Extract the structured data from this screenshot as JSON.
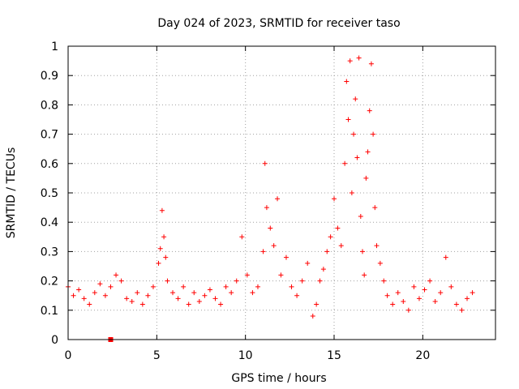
{
  "chart_data": {
    "type": "scatter",
    "title": "Day 024 of 2023, SRMTID for receiver taso",
    "xlabel": "GPS time / hours",
    "ylabel": "SRMTID / TECUs",
    "xlim": [
      0,
      24.1
    ],
    "ylim": [
      0,
      1
    ],
    "xticks": [
      0,
      5,
      10,
      15,
      20
    ],
    "yticks": [
      0,
      0.1,
      0.2,
      0.3,
      0.4,
      0.5,
      0.6,
      0.7,
      0.8,
      0.9,
      1
    ],
    "xtick_labels": [
      "0",
      "5",
      "10",
      "15",
      "20"
    ],
    "ytick_labels": [
      "0",
      "0.1",
      "0.2",
      "0.3",
      "0.4",
      "0.5",
      "0.6",
      "0.7",
      "0.8",
      "0.9",
      "1"
    ],
    "grid": true,
    "legend": "none",
    "series": [
      {
        "name": "SRMTID",
        "marker": "plus",
        "color": "#ff0000",
        "x": [
          0.0,
          0.3,
          0.6,
          0.9,
          1.2,
          1.5,
          1.8,
          2.1,
          2.4,
          2.7,
          3.0,
          3.3,
          3.6,
          3.9,
          4.2,
          4.5,
          4.8,
          5.1,
          5.2,
          5.3,
          5.4,
          5.5,
          5.6,
          5.9,
          6.2,
          6.5,
          6.8,
          7.1,
          7.4,
          7.7,
          8.0,
          8.3,
          8.6,
          8.9,
          9.2,
          9.5,
          9.8,
          10.1,
          10.4,
          10.7,
          11.0,
          11.1,
          11.2,
          11.4,
          11.6,
          11.8,
          12.0,
          12.3,
          12.6,
          12.9,
          13.2,
          13.5,
          13.8,
          14.0,
          14.2,
          14.4,
          14.6,
          14.8,
          15.0,
          15.2,
          15.4,
          15.6,
          15.7,
          15.8,
          15.9,
          16.0,
          16.1,
          16.2,
          16.3,
          16.4,
          16.5,
          16.6,
          16.7,
          16.8,
          16.9,
          17.0,
          17.1,
          17.2,
          17.3,
          17.4,
          17.6,
          17.8,
          18.0,
          18.3,
          18.6,
          18.9,
          19.2,
          19.5,
          19.8,
          20.1,
          20.4,
          20.7,
          21.0,
          21.3,
          21.6,
          21.9,
          22.2,
          22.5,
          22.8
        ],
        "y": [
          0.18,
          0.15,
          0.17,
          0.14,
          0.12,
          0.16,
          0.19,
          0.15,
          0.18,
          0.22,
          0.2,
          0.14,
          0.13,
          0.16,
          0.12,
          0.15,
          0.18,
          0.26,
          0.31,
          0.44,
          0.35,
          0.28,
          0.2,
          0.16,
          0.14,
          0.18,
          0.12,
          0.16,
          0.13,
          0.15,
          0.17,
          0.14,
          0.12,
          0.18,
          0.16,
          0.2,
          0.35,
          0.22,
          0.16,
          0.18,
          0.3,
          0.6,
          0.45,
          0.38,
          0.32,
          0.48,
          0.22,
          0.28,
          0.18,
          0.15,
          0.2,
          0.26,
          0.08,
          0.12,
          0.2,
          0.24,
          0.3,
          0.35,
          0.48,
          0.38,
          0.32,
          0.6,
          0.88,
          0.75,
          0.95,
          0.5,
          0.7,
          0.82,
          0.62,
          0.96,
          0.42,
          0.3,
          0.22,
          0.55,
          0.64,
          0.78,
          0.94,
          0.7,
          0.45,
          0.32,
          0.26,
          0.2,
          0.15,
          0.12,
          0.16,
          0.13,
          0.1,
          0.18,
          0.14,
          0.17,
          0.2,
          0.13,
          0.16,
          0.28,
          0.18,
          0.12,
          0.1,
          0.14,
          0.16
        ]
      },
      {
        "name": "marker",
        "marker": "square",
        "color": "#ff0000",
        "x": [
          2.4
        ],
        "y": [
          0
        ]
      }
    ]
  }
}
